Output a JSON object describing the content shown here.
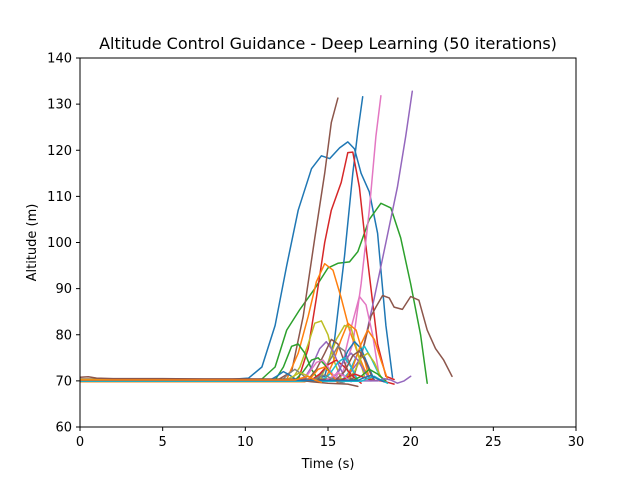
{
  "chart_data": {
    "type": "line",
    "title": "Altitude Control Guidance - Deep Learning (50 iterations)",
    "xlabel": "Time (s)",
    "ylabel": "Altitude (m)",
    "xlim": [
      0,
      30
    ],
    "ylim": [
      60,
      140
    ],
    "xticks": [
      0,
      5,
      10,
      15,
      20,
      25,
      30
    ],
    "yticks": [
      60,
      70,
      80,
      90,
      100,
      110,
      120,
      130,
      140
    ],
    "grid": false,
    "legend": "none",
    "series": [
      {
        "color": "#1f77b4",
        "x": [
          0,
          5,
          9,
          10.2,
          11,
          11.8,
          12.5,
          13.2,
          14,
          14.6,
          15.1,
          15.7,
          16.2,
          16.6,
          17,
          17.5,
          18,
          18.5,
          18.9
        ],
        "y": [
          70.3,
          70.3,
          70.3,
          70.6,
          73,
          82,
          95,
          107,
          116,
          118.8,
          118.2,
          120.5,
          121.8,
          120.3,
          115,
          111,
          102,
          82,
          70.8
        ]
      },
      {
        "color": "#2ca02c",
        "x": [
          0,
          7,
          10,
          11,
          11.8,
          12.5,
          13.3,
          14.2,
          15,
          15.6,
          16.3,
          16.8,
          17.5,
          18.2,
          18.8,
          19.4,
          20,
          20.6,
          21
        ],
        "y": [
          70.2,
          70.2,
          70.2,
          70.4,
          73,
          81,
          85.5,
          90,
          94.5,
          95.5,
          95.8,
          98,
          105,
          108.5,
          107.5,
          101,
          91,
          80,
          69.5
        ]
      },
      {
        "color": "#8c564b",
        "x": [
          0,
          8,
          12,
          12.8,
          13.5,
          14.2,
          14.8,
          15.2,
          15.6
        ],
        "y": [
          70.3,
          70.3,
          70.3,
          72,
          84,
          101,
          115,
          126,
          131.3
        ]
      },
      {
        "color": "#1f77b4",
        "x": [
          0,
          9,
          14,
          14.8,
          15.4,
          16,
          16.5,
          16.8,
          17.1
        ],
        "y": [
          70.1,
          70.1,
          70.1,
          71,
          79,
          97,
          115,
          124,
          131.6
        ]
      },
      {
        "color": "#d62728",
        "x": [
          0,
          9,
          13.2,
          13.8,
          14.3,
          14.8,
          15.2,
          15.8,
          16.2,
          16.5,
          16.9,
          17.2,
          17.6,
          18,
          18.5,
          19
        ],
        "y": [
          70.2,
          70.2,
          70.2,
          77,
          88,
          100,
          107,
          113,
          119.5,
          119.6,
          112,
          102,
          90,
          78,
          71,
          70.3
        ]
      },
      {
        "color": "#e377c2",
        "x": [
          0,
          10,
          15,
          15.8,
          16.5,
          17,
          17.5,
          17.9,
          18.2
        ],
        "y": [
          70,
          70,
          70,
          71,
          78,
          91,
          107,
          123,
          131.8
        ]
      },
      {
        "color": "#9467bd",
        "x": [
          0,
          10,
          16,
          17,
          17.8,
          18.5,
          19.2,
          19.7,
          20.1
        ],
        "y": [
          70.1,
          70.1,
          70.1,
          75,
          88,
          100,
          112,
          123,
          132.8
        ]
      },
      {
        "color": "#8c564b",
        "x": [
          0,
          12,
          16.5,
          17.2,
          17.6,
          17.9,
          18.3,
          18.7,
          19,
          19.5,
          20,
          20.5,
          21,
          21.5,
          22,
          22.5
        ],
        "y": [
          70.4,
          70.4,
          70.4,
          78,
          84,
          86,
          88.5,
          88,
          86,
          85.5,
          88.3,
          87.5,
          81,
          77,
          74.5,
          71
        ]
      },
      {
        "color": "#ff7f0e",
        "x": [
          0,
          10,
          12.5,
          13.2,
          13.8,
          14.3,
          14.8,
          15.3,
          15.8,
          16.3,
          16.8,
          17.2,
          17.6
        ],
        "y": [
          70.3,
          70.3,
          70.3,
          76,
          84,
          91.5,
          95.4,
          94,
          88,
          81,
          76,
          72.5,
          70.5
        ]
      },
      {
        "color": "#bcbd22",
        "x": [
          0,
          10,
          12.8,
          13.3,
          13.8,
          14.2,
          14.6,
          15,
          15.4,
          15.8
        ],
        "y": [
          70.2,
          70.2,
          70.2,
          73,
          78,
          82.5,
          83,
          80,
          74,
          70.4
        ]
      },
      {
        "color": "#2ca02c",
        "x": [
          0,
          9,
          11.8,
          12.3,
          12.8,
          13.2,
          13.6,
          14,
          14.4
        ],
        "y": [
          70.2,
          70.2,
          70.2,
          73,
          77.5,
          78,
          76,
          72.5,
          70.3
        ]
      },
      {
        "color": "#e377c2",
        "x": [
          0,
          10,
          15.4,
          15.9,
          16.4,
          16.9,
          17.3,
          17.7,
          18.1
        ],
        "y": [
          70,
          70,
          70,
          74,
          81.5,
          88.3,
          86.5,
          80,
          71
        ]
      },
      {
        "color": "#ff7f0e",
        "x": [
          0,
          10,
          14.8,
          15.3,
          15.8,
          16.2,
          16.7,
          17.1,
          17.5
        ],
        "y": [
          70.1,
          70.1,
          70.1,
          74,
          79,
          82.5,
          81,
          76,
          70.6
        ]
      },
      {
        "color": "#bcbd22",
        "x": [
          0,
          10,
          14.5,
          15,
          15.5,
          16,
          16.4,
          16.8,
          17.2
        ],
        "y": [
          70.2,
          70.2,
          70.2,
          74,
          79,
          82,
          81.5,
          76,
          71
        ]
      },
      {
        "color": "#9467bd",
        "x": [
          0,
          10,
          13.5,
          14,
          14.5,
          14.9,
          15.3,
          15.7,
          16.1
        ],
        "y": [
          70.1,
          70.1,
          70.1,
          73,
          77,
          78.5,
          76.5,
          73,
          70.2
        ]
      },
      {
        "color": "#8c564b",
        "x": [
          0,
          10,
          13.8,
          14.3,
          14.8,
          15.2,
          15.6,
          16,
          16.4
        ],
        "y": [
          70.3,
          70.3,
          70.3,
          72.5,
          76,
          79,
          78,
          74,
          70.5
        ]
      },
      {
        "color": "#7f7f7f",
        "x": [
          0,
          10,
          14.2,
          14.7,
          15.2,
          15.6,
          16,
          16.4,
          16.8
        ],
        "y": [
          70,
          70,
          70,
          72,
          75,
          77.5,
          76.5,
          73,
          70
        ]
      },
      {
        "color": "#17becf",
        "x": [
          0,
          10,
          15.8,
          16.3,
          16.8,
          17.2,
          17.6,
          18,
          18.4
        ],
        "y": [
          69.9,
          69.9,
          69.9,
          72,
          76,
          77.5,
          75,
          72,
          69.8
        ]
      },
      {
        "color": "#1f77b4",
        "x": [
          0,
          10,
          15.2,
          15.7,
          16.2,
          16.6,
          17,
          17.4,
          17.8
        ],
        "y": [
          70.1,
          70.1,
          70.1,
          72.5,
          76.5,
          78.5,
          77,
          73.5,
          70.2
        ]
      },
      {
        "color": "#ff7f0e",
        "x": [
          0,
          10,
          16,
          16.5,
          17,
          17.4,
          17.8,
          18.2,
          18.6
        ],
        "y": [
          70.2,
          70.2,
          70.2,
          73,
          78,
          81,
          79,
          74.5,
          70.4
        ]
      },
      {
        "color": "#2ca02c",
        "x": [
          0,
          10,
          13,
          13.5,
          14,
          14.4,
          14.8,
          15.2,
          15.6
        ],
        "y": [
          70.1,
          70.1,
          70.1,
          72,
          74.5,
          75,
          73.5,
          71.5,
          70
        ]
      },
      {
        "color": "#d62728",
        "x": [
          0,
          10,
          14,
          14.5,
          15,
          15.5,
          16,
          16.5,
          17
        ],
        "y": [
          70.2,
          70.2,
          70.2,
          71.5,
          73.5,
          74.5,
          73,
          71,
          69.5
        ]
      },
      {
        "color": "#9467bd",
        "x": [
          0,
          10,
          15,
          15.5,
          16,
          16.4,
          16.8,
          17.2,
          17.6
        ],
        "y": [
          70,
          70,
          70,
          71.5,
          74.5,
          76,
          74.5,
          72,
          70
        ]
      },
      {
        "color": "#e377c2",
        "x": [
          0,
          10,
          13.3,
          13.8,
          14.3,
          14.7,
          15.1,
          15.5
        ],
        "y": [
          70.1,
          70.1,
          70.1,
          71.5,
          74,
          74.5,
          72.5,
          70.2
        ]
      },
      {
        "color": "#bcbd22",
        "x": [
          0,
          10,
          16.2,
          16.6,
          17,
          17.4,
          17.8,
          18.2
        ],
        "y": [
          70.2,
          70.2,
          70.2,
          72,
          75,
          76,
          74,
          70.8
        ]
      },
      {
        "color": "#17becf",
        "x": [
          0,
          10,
          14.6,
          15.1,
          15.6,
          16,
          16.4,
          16.8
        ],
        "y": [
          70,
          70,
          70,
          71.5,
          74,
          75,
          73,
          70.1
        ]
      },
      {
        "color": "#8c564b",
        "x": [
          0,
          10,
          15.5,
          16,
          16.5,
          16.9,
          17.3,
          17.7
        ],
        "y": [
          70.3,
          70.3,
          70.3,
          72,
          75.5,
          76.5,
          74,
          70.5
        ]
      },
      {
        "color": "#7f7f7f",
        "x": [
          0,
          10,
          12.2,
          12.6,
          13,
          13.4,
          13.8
        ],
        "y": [
          70.1,
          70.1,
          70.1,
          71.5,
          72.5,
          71.5,
          70.2
        ]
      },
      {
        "color": "#1f77b4",
        "x": [
          0,
          10,
          11.5,
          11.9,
          12.3,
          12.7,
          13.1
        ],
        "y": [
          70.2,
          70.2,
          70.2,
          71,
          72,
          71.2,
          70.2
        ]
      },
      {
        "color": "#ff7f0e",
        "x": [
          0,
          10,
          13.6,
          14,
          14.4,
          14.8,
          15.2,
          15.6
        ],
        "y": [
          69.8,
          69.8,
          69.8,
          70.8,
          72.5,
          73,
          71.5,
          69.5
        ]
      },
      {
        "color": "#2ca02c",
        "x": [
          0,
          10,
          16.5,
          17,
          17.5,
          18,
          18.5
        ],
        "y": [
          70.1,
          70.1,
          70.1,
          71,
          72.5,
          71.5,
          70
        ]
      },
      {
        "color": "#d62728",
        "x": [
          0,
          10,
          15.8,
          16.2,
          16.6,
          17,
          17.4,
          17.8,
          18.2,
          18.6,
          19
        ],
        "y": [
          70.2,
          70.2,
          70.2,
          70.8,
          71.5,
          71,
          70.4,
          70.1,
          70,
          69.7,
          69.3
        ]
      },
      {
        "color": "#9467bd",
        "x": [
          0,
          10,
          18,
          18.4,
          18.8,
          19.2,
          19.6,
          20
        ],
        "y": [
          70,
          70,
          70,
          70.5,
          70.2,
          69.5,
          70,
          71
        ]
      },
      {
        "color": "#e377c2",
        "x": [
          0,
          10,
          14.8,
          15.2,
          15.6,
          16,
          16.4
        ],
        "y": [
          70,
          70,
          70,
          70.8,
          71.8,
          71,
          69.8
        ]
      },
      {
        "color": "#bcbd22",
        "x": [
          0,
          10,
          12.5,
          12.9,
          13.3,
          13.7,
          14.1,
          14.5
        ],
        "y": [
          70.3,
          70.3,
          70.3,
          71,
          71.8,
          71.2,
          70.4,
          70
        ]
      },
      {
        "color": "#17becf",
        "x": [
          0,
          10,
          17,
          17.4,
          17.8,
          18.2,
          18.6
        ],
        "y": [
          69.9,
          69.9,
          69.9,
          70.5,
          71,
          70.2,
          69.5
        ]
      },
      {
        "color": "#8c564b",
        "x": [
          0,
          0.5,
          1,
          2,
          5,
          7.5,
          10,
          13,
          14,
          15,
          16.2,
          16.8
        ],
        "y": [
          70.8,
          70.9,
          70.6,
          70.5,
          70.5,
          70.4,
          70.4,
          70.3,
          69.8,
          69.5,
          69.3,
          68.8
        ]
      },
      {
        "color": "#7f7f7f",
        "x": [
          0,
          10,
          14,
          14.4,
          14.8,
          15.2,
          15.6,
          16
        ],
        "y": [
          70.1,
          70.1,
          70.1,
          70.8,
          71.3,
          70.5,
          69.8,
          69.5
        ]
      },
      {
        "color": "#1f77b4",
        "x": [
          0,
          10,
          16.8,
          17.2,
          17.6,
          18,
          18.4
        ],
        "y": [
          70.1,
          70.1,
          70.1,
          70.7,
          71.2,
          70.4,
          69.8
        ]
      },
      {
        "color": "#ff7f0e",
        "x": [
          0,
          10,
          13,
          13.4,
          13.8,
          14.2,
          14.6
        ],
        "y": [
          70.2,
          70.2,
          70.2,
          70.6,
          71,
          70.2,
          69.7
        ]
      }
    ]
  }
}
